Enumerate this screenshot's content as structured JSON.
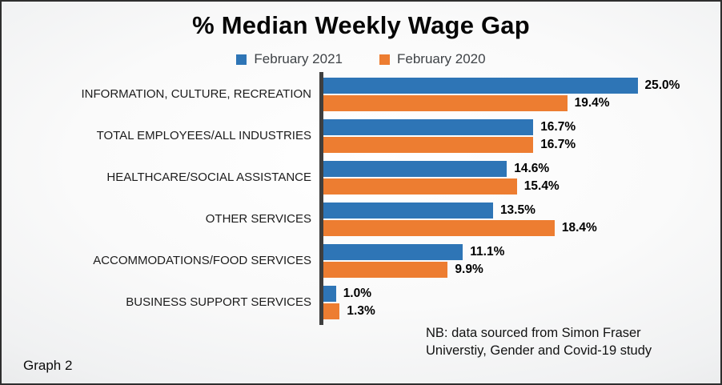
{
  "slide": {
    "title": "% Median Weekly Wage Gap",
    "caption": "Graph 2",
    "note_lines": [
      "NB: data sourced from Simon Fraser",
      "Universtiy, Gender and Covid-19 study"
    ]
  },
  "chart_data": {
    "type": "bar",
    "orientation": "horizontal",
    "title": "% Median Weekly Wage Gap",
    "legend_position": "top",
    "value_suffix": "%",
    "axis_color": "#3F3F3F",
    "xlim": [
      0,
      30
    ],
    "grid": false,
    "categories": [
      "INFORMATION, CULTURE, RECREATION",
      "TOTAL EMPLOYEES/ALL INDUSTRIES",
      "HEALTHCARE/SOCIAL ASSISTANCE",
      "OTHER SERVICES",
      "ACCOMMODATIONS/FOOD SERVICES",
      "BUSINESS SUPPORT SERVICES"
    ],
    "series": [
      {
        "name": "February 2021",
        "color": "#2E75B6",
        "values": [
          25.0,
          16.7,
          14.6,
          13.5,
          11.1,
          1.0
        ]
      },
      {
        "name": "February 2020",
        "color": "#ED7D31",
        "values": [
          19.4,
          16.7,
          15.4,
          18.4,
          9.9,
          1.3
        ]
      }
    ]
  }
}
